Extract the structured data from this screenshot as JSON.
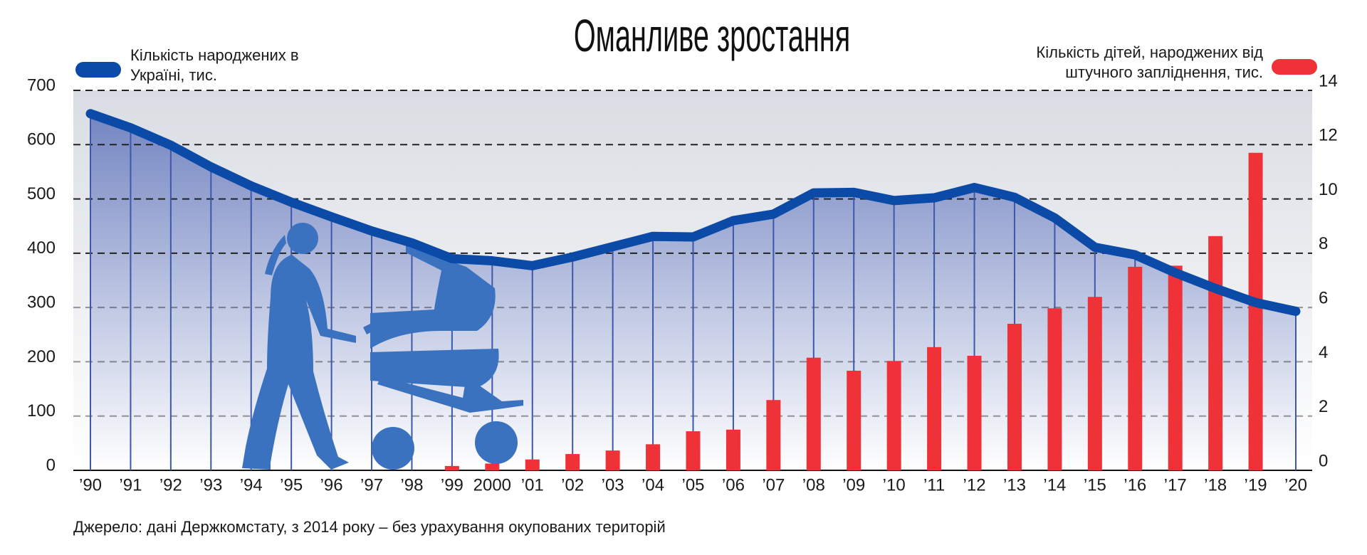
{
  "chart_data": {
    "type": "combo",
    "title": "Оманливе зростання",
    "source": "Джерело: дані Держкомстату, з 2014 року – без урахування окупованих територій",
    "categories": [
      "’90",
      "’91",
      "’92",
      "’93",
      "’94",
      "’95",
      "’96",
      "’97",
      "’98",
      "’99",
      "2000",
      "’01",
      "’02",
      "’03",
      "’04",
      "’05",
      "’06",
      "’07",
      "’08",
      "’09",
      "’10",
      "’11",
      "’12",
      "’13",
      "’14",
      "’15",
      "’16",
      "’17",
      "’18",
      "’19",
      "’20"
    ],
    "series": [
      {
        "name": "Кількість народжених в Україні, тис.",
        "type": "line",
        "color": "#0b4aa6",
        "values": [
          657,
          631,
          599,
          559,
          524,
          494,
          467,
          441,
          419,
          390,
          386,
          377,
          393,
          412,
          431,
          430,
          460,
          472,
          511,
          512,
          497,
          502,
          521,
          503,
          465,
          411,
          397,
          364,
          335,
          309,
          293
        ]
      },
      {
        "name": "Кількість дітей, народжених від штучного запліднення, тис.",
        "type": "bar",
        "axis": "y2",
        "color": "#ee3237",
        "values": [
          null,
          null,
          null,
          null,
          null,
          null,
          null,
          null,
          null,
          0.16,
          0.25,
          0.4,
          0.6,
          0.73,
          0.96,
          1.44,
          1.5,
          2.59,
          4.15,
          3.67,
          4.03,
          4.54,
          4.22,
          5.4,
          5.97,
          6.39,
          7.5,
          7.54,
          8.63,
          11.7,
          null
        ]
      }
    ],
    "ylim": [
      0,
      700
    ],
    "yticks": [
      0,
      100,
      200,
      300,
      400,
      500,
      600,
      700
    ],
    "y2lim": [
      0,
      14
    ],
    "y2ticks": [
      0,
      2,
      4,
      6,
      8,
      10,
      12,
      14
    ],
    "grid": true
  }
}
